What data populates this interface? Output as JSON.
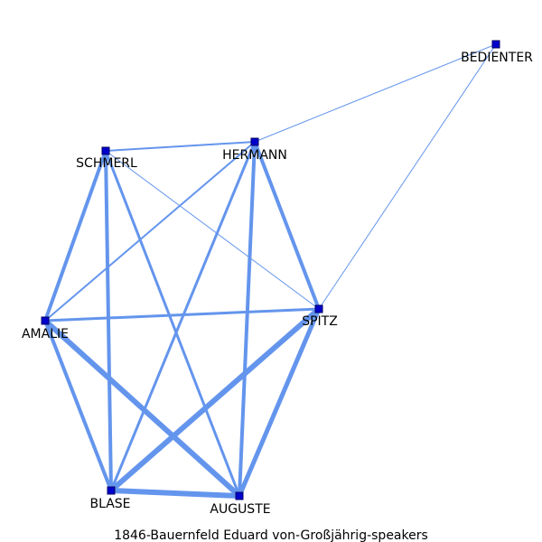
{
  "caption": "1846-Bauernfeld  Eduard  von-Großjährig-speakers",
  "colors": {
    "edge": "#6495ED",
    "node": "#0000CC",
    "label": "#000000",
    "background": "#FFFFFF"
  },
  "nodes": [
    {
      "id": "BEDIENTER",
      "label": "BEDIENTER"
    },
    {
      "id": "SCHMERL",
      "label": "SCHMERL"
    },
    {
      "id": "HERMANN",
      "label": "HERMANN"
    },
    {
      "id": "AMALIE",
      "label": "AMALIE"
    },
    {
      "id": "SPITZ",
      "label": "SPITZ"
    },
    {
      "id": "BLASE",
      "label": "BLASE"
    },
    {
      "id": "AUGUSTE",
      "label": "AUGUSTE"
    }
  ],
  "edges": [
    {
      "source": "HERMANN",
      "target": "BEDIENTER",
      "weight": 1
    },
    {
      "source": "SPITZ",
      "target": "BEDIENTER",
      "weight": 1
    },
    {
      "source": "SCHMERL",
      "target": "SPITZ",
      "weight": 1
    },
    {
      "source": "HERMANN",
      "target": "AMALIE",
      "weight": 2
    },
    {
      "source": "SCHMERL",
      "target": "HERMANN",
      "weight": 2
    },
    {
      "source": "AMALIE",
      "target": "SPITZ",
      "weight": 3
    },
    {
      "source": "HERMANN",
      "target": "BLASE",
      "weight": 3
    },
    {
      "source": "SCHMERL",
      "target": "AUGUSTE",
      "weight": 3
    },
    {
      "source": "SCHMERL",
      "target": "AMALIE",
      "weight": 4
    },
    {
      "source": "SCHMERL",
      "target": "BLASE",
      "weight": 4
    },
    {
      "source": "HERMANN",
      "target": "SPITZ",
      "weight": 4
    },
    {
      "source": "HERMANN",
      "target": "AUGUSTE",
      "weight": 4
    },
    {
      "source": "AMALIE",
      "target": "BLASE",
      "weight": 4
    },
    {
      "source": "SPITZ",
      "target": "AUGUSTE",
      "weight": 5
    },
    {
      "source": "AMALIE",
      "target": "AUGUSTE",
      "weight": 6
    },
    {
      "source": "SPITZ",
      "target": "BLASE",
      "weight": 6
    },
    {
      "source": "BLASE",
      "target": "AUGUSTE",
      "weight": 6
    }
  ]
}
